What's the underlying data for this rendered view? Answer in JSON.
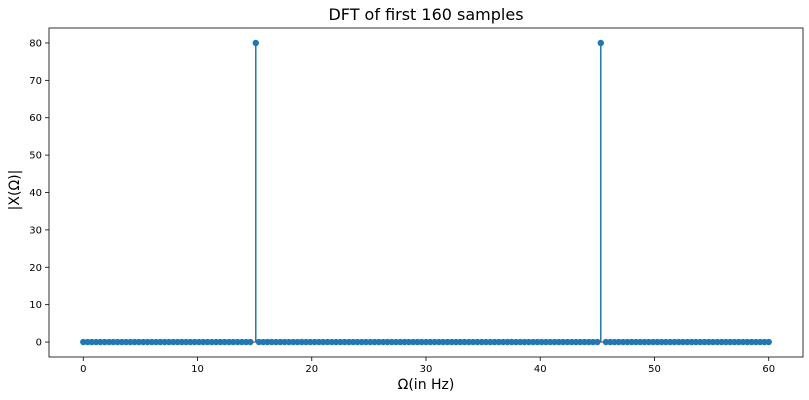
{
  "chart_data": {
    "type": "stem",
    "title": "DFT of first 160 samples",
    "xlabel": "Ω(in Hz)",
    "ylabel": "|X(Ω)|",
    "xlim": [
      -3,
      63
    ],
    "ylim": [
      -4,
      84
    ],
    "xticks": [
      0,
      10,
      20,
      30,
      40,
      50,
      60
    ],
    "yticks": [
      0,
      10,
      20,
      30,
      40,
      50,
      60,
      70,
      80
    ],
    "grid": false,
    "n_samples": 160,
    "x_start": 0,
    "x_end": 60,
    "peaks": [
      {
        "x": 15.1,
        "y": 80
      },
      {
        "x": 45.3,
        "y": 80
      }
    ],
    "baseline_value": 0,
    "colors": {
      "stem": "#1f77b4",
      "baseline": "#d62728"
    }
  }
}
